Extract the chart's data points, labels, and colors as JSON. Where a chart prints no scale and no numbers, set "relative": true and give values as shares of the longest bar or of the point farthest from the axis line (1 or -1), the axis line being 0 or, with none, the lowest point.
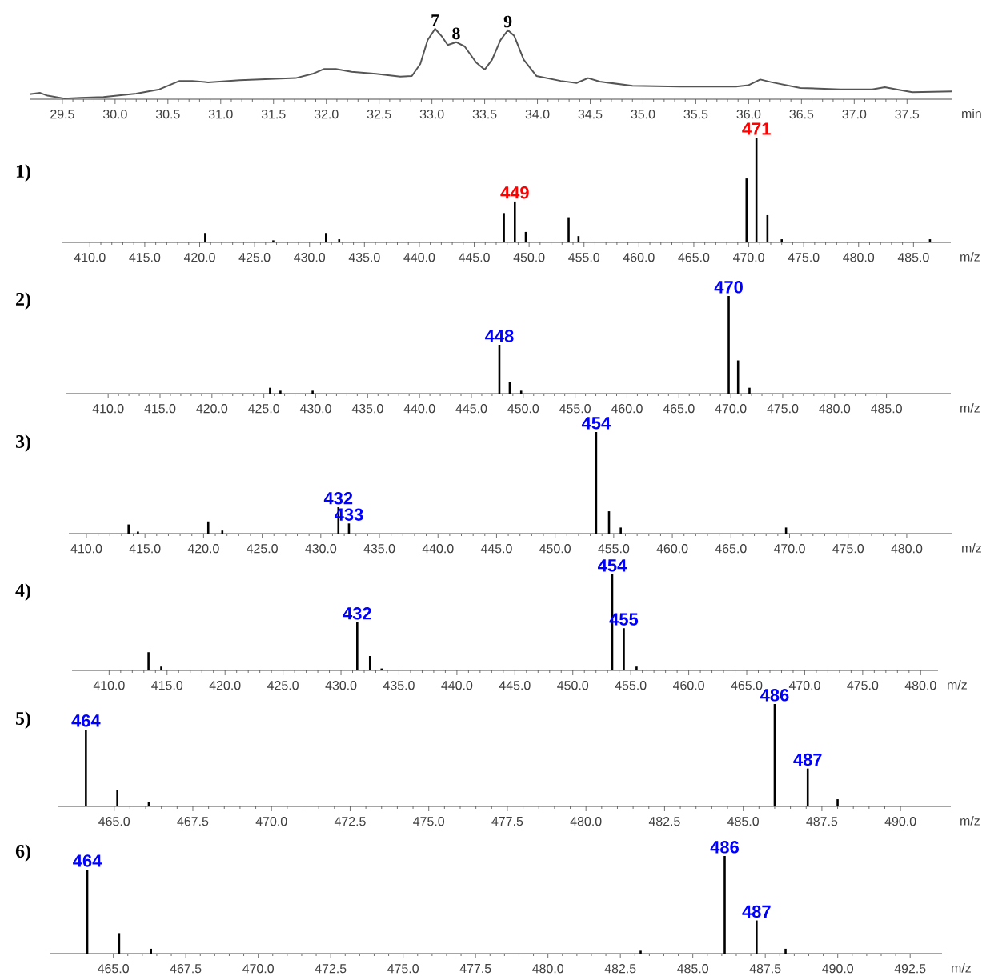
{
  "chart_data": [
    {
      "type": "line",
      "relative": true,
      "color": "#555555",
      "xlabel": "min",
      "xlim": [
        29.19,
        37.93
      ],
      "x": [
        29.19,
        29.29,
        29.36,
        29.52,
        29.67,
        29.89,
        30.2,
        30.42,
        30.61,
        30.73,
        30.88,
        31.18,
        31.71,
        31.87,
        31.98,
        32.09,
        32.24,
        32.47,
        32.7,
        32.81,
        32.89,
        32.96,
        33.03,
        33.09,
        33.15,
        33.23,
        33.31,
        33.42,
        33.5,
        33.57,
        33.65,
        33.72,
        33.78,
        33.87,
        33.99,
        34.22,
        34.37,
        34.48,
        34.59,
        34.9,
        35.35,
        35.88,
        36.0,
        36.11,
        36.22,
        36.49,
        36.87,
        37.17,
        37.29,
        37.4,
        37.55,
        37.93
      ],
      "values": [
        0.07,
        0.09,
        0.05,
        0.01,
        0.02,
        0.03,
        0.08,
        0.14,
        0.26,
        0.26,
        0.24,
        0.27,
        0.3,
        0.36,
        0.43,
        0.43,
        0.39,
        0.36,
        0.32,
        0.33,
        0.5,
        0.84,
        1,
        0.9,
        0.77,
        0.81,
        0.75,
        0.52,
        0.42,
        0.56,
        0.84,
        0.98,
        0.9,
        0.56,
        0.33,
        0.26,
        0.23,
        0.3,
        0.25,
        0.19,
        0.18,
        0.18,
        0.2,
        0.28,
        0.24,
        0.16,
        0.14,
        0.14,
        0.17,
        0.14,
        0.1,
        0.11
      ],
      "xticks": [
        {
          "value": 29.5,
          "label": "29.5"
        },
        {
          "value": 30,
          "label": "30.0"
        },
        {
          "value": 30.5,
          "label": "30.5"
        },
        {
          "value": 31,
          "label": "31.0"
        },
        {
          "value": 31.5,
          "label": "31.5"
        },
        {
          "value": 32,
          "label": "32.0"
        },
        {
          "value": 32.5,
          "label": "32.5"
        },
        {
          "value": 33,
          "label": "33.0"
        },
        {
          "value": 33.5,
          "label": "33.5"
        },
        {
          "value": 34,
          "label": "34.0"
        },
        {
          "value": 34.5,
          "label": "34.5"
        },
        {
          "value": 35,
          "label": "35.0"
        },
        {
          "value": 35.5,
          "label": "35.5"
        },
        {
          "value": 36,
          "label": "36.0"
        },
        {
          "value": 36.5,
          "label": "36.5"
        },
        {
          "value": 37,
          "label": "37.0"
        },
        {
          "value": 37.5,
          "label": "37.5"
        }
      ],
      "annotations": [
        {
          "text": "7",
          "x": 33.03,
          "y": 1
        },
        {
          "text": "8",
          "x": 33.23,
          "y": 0.81
        },
        {
          "text": "9",
          "x": 33.72,
          "y": 0.98
        }
      ]
    },
    {
      "type": "bar",
      "relative": true,
      "title": "1)",
      "color": "#000000",
      "xlabel": "m/z",
      "xlim": [
        407.5,
        488.4
      ],
      "x": [
        420.5,
        426.7,
        431.5,
        432.7,
        447.7,
        448.7,
        449.7,
        453.6,
        454.5,
        469.8,
        470.7,
        471.7,
        473.0,
        486.5
      ],
      "values": [
        0.09,
        0.02,
        0.09,
        0.03,
        0.28,
        0.39,
        0.1,
        0.24,
        0.06,
        0.61,
        1,
        0.26,
        0.03,
        0.03
      ],
      "annotations": [
        {
          "text": "449",
          "x": 448.7,
          "y": 0.39
        },
        {
          "text": "471",
          "x": 470.7,
          "y": 1
        }
      ],
      "xticks": [
        {
          "value": 410,
          "label": "410.0"
        },
        {
          "value": 415,
          "label": "415.0"
        },
        {
          "value": 420,
          "label": "420.0"
        },
        {
          "value": 425,
          "label": "425.0"
        },
        {
          "value": 430,
          "label": "430.0"
        },
        {
          "value": 435,
          "label": "435.0"
        },
        {
          "value": 440,
          "label": "440.0"
        },
        {
          "value": 445,
          "label": "445.0"
        },
        {
          "value": 450,
          "label": "450.0"
        },
        {
          "value": 455,
          "label": "455.0"
        },
        {
          "value": 460,
          "label": "460.0"
        },
        {
          "value": 465,
          "label": "465.0"
        },
        {
          "value": 470,
          "label": "470.0"
        },
        {
          "value": 475,
          "label": "475.0"
        },
        {
          "value": 480,
          "label": "480.0"
        },
        {
          "value": 485,
          "label": "485.0"
        }
      ]
    },
    {
      "type": "bar",
      "relative": true,
      "title": "2)",
      "color": "#000000",
      "xlabel": "m/z",
      "xlim": [
        405.9,
        491.2
      ],
      "x": [
        425.6,
        426.6,
        429.7,
        447.7,
        448.7,
        449.8,
        469.8,
        470.7,
        471.8
      ],
      "values": [
        0.06,
        0.03,
        0.03,
        0.5,
        0.12,
        0.03,
        1,
        0.34,
        0.06
      ],
      "annotations": [
        {
          "text": "448",
          "x": 447.7,
          "y": 0.5
        },
        {
          "text": "470",
          "x": 469.8,
          "y": 1
        }
      ],
      "xticks": [
        {
          "value": 410,
          "label": "410.0"
        },
        {
          "value": 415,
          "label": "415.0"
        },
        {
          "value": 420,
          "label": "420.0"
        },
        {
          "value": 425,
          "label": "425.0"
        },
        {
          "value": 430,
          "label": "430.0"
        },
        {
          "value": 435,
          "label": "435.0"
        },
        {
          "value": 440,
          "label": "440.0"
        },
        {
          "value": 445,
          "label": "445.0"
        },
        {
          "value": 450,
          "label": "450.0"
        },
        {
          "value": 455,
          "label": "455.0"
        },
        {
          "value": 460,
          "label": "460.0"
        },
        {
          "value": 465,
          "label": "465.0"
        },
        {
          "value": 470,
          "label": "470.0"
        },
        {
          "value": 475,
          "label": "475.0"
        },
        {
          "value": 480,
          "label": "480.0"
        },
        {
          "value": 485,
          "label": "485.0"
        }
      ]
    },
    {
      "type": "bar",
      "relative": true,
      "title": "3)",
      "color": "#000000",
      "xlabel": "m/z",
      "xlim": [
        408.5,
        483.9
      ],
      "x": [
        413.6,
        414.4,
        420.4,
        421.6,
        431.5,
        432.4,
        453.5,
        454.6,
        455.6,
        469.7
      ],
      "values": [
        0.09,
        0.02,
        0.12,
        0.03,
        0.26,
        0.1,
        1,
        0.22,
        0.06,
        0.06
      ],
      "annotations": [
        {
          "text": "432",
          "x": 431.5,
          "y": 0.26
        },
        {
          "text": "433",
          "x": 432.4,
          "y": 0.1
        },
        {
          "text": "454",
          "x": 453.5,
          "y": 1
        }
      ],
      "xticks": [
        {
          "value": 410,
          "label": "410.0"
        },
        {
          "value": 415,
          "label": "415.0"
        },
        {
          "value": 420,
          "label": "420.0"
        },
        {
          "value": 425,
          "label": "425.0"
        },
        {
          "value": 430,
          "label": "430.0"
        },
        {
          "value": 435,
          "label": "435.0"
        },
        {
          "value": 440,
          "label": "440.0"
        },
        {
          "value": 445,
          "label": "445.0"
        },
        {
          "value": 450,
          "label": "450.0"
        },
        {
          "value": 455,
          "label": "455.0"
        },
        {
          "value": 460,
          "label": "460.0"
        },
        {
          "value": 465,
          "label": "465.0"
        },
        {
          "value": 470,
          "label": "470.0"
        },
        {
          "value": 475,
          "label": "475.0"
        },
        {
          "value": 480,
          "label": "480.0"
        }
      ]
    },
    {
      "type": "bar",
      "relative": true,
      "title": "4)",
      "color": "#000000",
      "xlabel": "m/z",
      "xlim": [
        406.8,
        481.5
      ],
      "x": [
        413.4,
        414.5,
        431.4,
        432.5,
        433.5,
        453.4,
        454.4,
        455.5
      ],
      "values": [
        0.19,
        0.04,
        0.5,
        0.15,
        0.02,
        1,
        0.44,
        0.04
      ],
      "annotations": [
        {
          "text": "432",
          "x": 431.4,
          "y": 0.5
        },
        {
          "text": "454",
          "x": 453.4,
          "y": 1
        },
        {
          "text": "455",
          "x": 454.4,
          "y": 0.44
        }
      ],
      "xticks": [
        {
          "value": 410,
          "label": "410.0"
        },
        {
          "value": 415,
          "label": "415.0"
        },
        {
          "value": 420,
          "label": "420.0"
        },
        {
          "value": 425,
          "label": "425.0"
        },
        {
          "value": 430,
          "label": "430.0"
        },
        {
          "value": 435,
          "label": "435.0"
        },
        {
          "value": 440,
          "label": "440.0"
        },
        {
          "value": 445,
          "label": "445.0"
        },
        {
          "value": 450,
          "label": "450.0"
        },
        {
          "value": 455,
          "label": "455.0"
        },
        {
          "value": 460,
          "label": "460.0"
        },
        {
          "value": 465,
          "label": "465.0"
        },
        {
          "value": 470,
          "label": "470.0"
        },
        {
          "value": 475,
          "label": "475.0"
        },
        {
          "value": 480,
          "label": "480.0"
        }
      ]
    },
    {
      "type": "bar",
      "relative": true,
      "title": "5)",
      "color": "#000000",
      "xlabel": "m/z",
      "xlim": [
        463.2,
        491.6
      ],
      "x": [
        464.1,
        465.1,
        466.1,
        486.0,
        487.05,
        488.0
      ],
      "values": [
        0.75,
        0.16,
        0.04,
        1,
        0.37,
        0.07
      ],
      "annotations": [
        {
          "text": "464",
          "x": 464.1,
          "y": 0.75
        },
        {
          "text": "486",
          "x": 486.0,
          "y": 1
        },
        {
          "text": "487",
          "x": 487.05,
          "y": 0.37
        }
      ],
      "xticks": [
        {
          "value": 465,
          "label": "465.0"
        },
        {
          "value": 467.5,
          "label": "467.5"
        },
        {
          "value": 470,
          "label": "470.0"
        },
        {
          "value": 472.5,
          "label": "472.5"
        },
        {
          "value": 475,
          "label": "475.0"
        },
        {
          "value": 477.5,
          "label": "477.5"
        },
        {
          "value": 480,
          "label": "480.0"
        },
        {
          "value": 482.5,
          "label": "482.5"
        },
        {
          "value": 485,
          "label": "485.0"
        },
        {
          "value": 487.5,
          "label": "487.5"
        },
        {
          "value": 490,
          "label": "490.0"
        }
      ]
    },
    {
      "type": "bar",
      "relative": true,
      "title": "6)",
      "color": "#000000",
      "xlabel": "m/z",
      "xlim": [
        462.8,
        493.6
      ],
      "x": [
        464.1,
        465.2,
        466.3,
        483.2,
        486.1,
        487.2,
        488.2
      ],
      "values": [
        0.86,
        0.21,
        0.05,
        0.03,
        1,
        0.34,
        0.05
      ],
      "annotations": [
        {
          "text": "464",
          "x": 464.1,
          "y": 0.86
        },
        {
          "text": "486",
          "x": 486.1,
          "y": 1
        },
        {
          "text": "487",
          "x": 487.2,
          "y": 0.34
        }
      ],
      "xticks": [
        {
          "value": 465,
          "label": "465.0"
        },
        {
          "value": 467.5,
          "label": "467.5"
        },
        {
          "value": 470,
          "label": "470.0"
        },
        {
          "value": 472.5,
          "label": "472.5"
        },
        {
          "value": 475,
          "label": "475.0"
        },
        {
          "value": 477.5,
          "label": "477.5"
        },
        {
          "value": 480,
          "label": "480.0"
        },
        {
          "value": 482.5,
          "label": "482.5"
        },
        {
          "value": 485,
          "label": "485.0"
        },
        {
          "value": 487.5,
          "label": "487.5"
        },
        {
          "value": 490,
          "label": "490.0"
        },
        {
          "value": 492.5,
          "label": "492.5"
        }
      ]
    }
  ]
}
